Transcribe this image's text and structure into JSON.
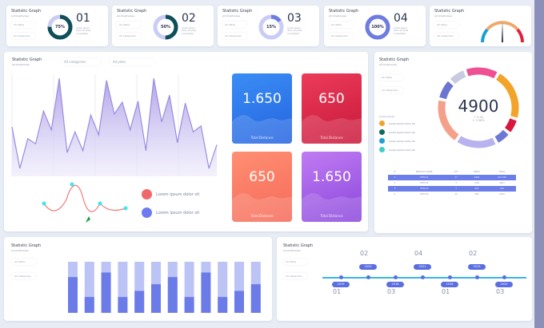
{
  "stat_cards": [
    {
      "title": "Statistic Graph",
      "subtitle": "All timeframes",
      "select1": "All dates",
      "select2": "All categories",
      "percent": "75%",
      "number": "01",
      "text": "Lorem ipsum dolor sit amet consectetur",
      "fill": 0.75,
      "color": "#0e4f5a"
    },
    {
      "title": "Statistic Graph",
      "subtitle": "All timeframes",
      "select1": "All dates",
      "select2": "All categories",
      "percent": "50%",
      "number": "02",
      "text": "Lorem ipsum dolor sit amet consectetur",
      "fill": 0.5,
      "color": "#0e4f5a"
    },
    {
      "title": "Statistic Graph",
      "subtitle": "All timeframes",
      "select1": "All dates",
      "select2": "All categories",
      "percent": "15%",
      "number": "03",
      "text": "Lorem ipsum dolor sit amet consectetur",
      "fill": 0.15,
      "color": "#6e7be0"
    },
    {
      "title": "Statistic Graph",
      "subtitle": "All timeframes",
      "select1": "All dates",
      "select2": "All categories",
      "percent": "100%",
      "number": "04",
      "text": "Lorem ipsum dolor sit amet consectetur",
      "fill": 1.0,
      "color": "#6e7be0"
    }
  ],
  "gauge_card": {
    "title": "Statistic Graph",
    "subtitle": "All timeframes",
    "select1": "All dates",
    "select2": "All categories"
  },
  "main_panel": {
    "title": "Statistic Graph",
    "subtitle": "All timeframes",
    "filter1": "All categories",
    "filter2": "All plots",
    "area_values": [
      50,
      8,
      38,
      33,
      66,
      47,
      99,
      24,
      45,
      26,
      62,
      42,
      97,
      63,
      75,
      47,
      76,
      26,
      99,
      55,
      82,
      34,
      74,
      45,
      51,
      8,
      32
    ],
    "legend": [
      {
        "label": "Lorem ipsum dolor sit",
        "color": "#f0686a"
      },
      {
        "label": "Lorem ipsum dolor sit",
        "color": "#6c7cf0"
      }
    ]
  },
  "kpis": [
    {
      "value": "1.650",
      "label": "Total Distance",
      "color1": "#3a8ef5",
      "color2": "#2563e0"
    },
    {
      "value": "650",
      "label": "Total Distance",
      "color1": "#ec3c5a",
      "color2": "#c8183a"
    },
    {
      "value": "650",
      "label": "Total Distance",
      "color1": "#ff8f72",
      "color2": "#f56a5a"
    },
    {
      "value": "1.650",
      "label": "Total Distance",
      "color1": "#c07cf2",
      "color2": "#8a46dc"
    }
  ],
  "donut_panel": {
    "title": "Statistic Graph",
    "subtitle": "All timeframes",
    "select1": "All dates",
    "select2": "All categories",
    "total": "4900",
    "line1": "+ 5.44",
    "line2": "+ 5.36%",
    "legend_title": "Lorem ipsum",
    "legend": [
      {
        "label": "Lorem ipsum dolor sit",
        "color": "#f2a32a"
      },
      {
        "label": "Lorem ipsum dolor sit",
        "color": "#0f6b5e"
      },
      {
        "label": "Lorem ipsum dolor sit",
        "color": "#1f9fd8"
      },
      {
        "label": "Lorem ipsum dolor sit",
        "color": "#3ccfc8"
      }
    ],
    "segments": [
      {
        "color": "#f2a32a",
        "value": 20
      },
      {
        "color": "#d8163e",
        "value": 6
      },
      {
        "color": "#6d78d6",
        "value": 6
      },
      {
        "color": "#b8b2ee",
        "value": 16
      },
      {
        "color": "#f5a08a",
        "value": 18
      },
      {
        "color": "#6b74cf",
        "value": 8
      },
      {
        "color": "#c8cbe0",
        "value": 7
      },
      {
        "color": "#ef4f93",
        "value": 13
      }
    ],
    "table": {
      "headers": [
        "#",
        "PRODUCT NAME",
        "QTY",
        "PRICE",
        "TOTAL"
      ],
      "rows": [
        [
          "1",
          "ITEM 01",
          "17",
          "$900",
          "$15.300"
        ],
        [
          "2",
          "ITEM 02",
          "3",
          "$ 89",
          "$267"
        ],
        [
          "3",
          "ITEM 03",
          "1",
          "$50",
          "$50"
        ],
        [
          "4",
          "ITEM 04",
          "12",
          "$60",
          "$720"
        ]
      ]
    }
  },
  "bar_panel": {
    "title": "Statistic Graph",
    "subtitle": "All timeframes",
    "select1": "All dates",
    "select2": "All categories",
    "values": [
      0.7,
      0.31,
      0.79,
      0.31,
      0.43,
      0.56,
      0.7,
      0.31,
      0.79,
      0.31,
      0.43,
      0.56
    ]
  },
  "timeline_panel": {
    "title": "Statistic Graph",
    "subtitle": "All timeframes",
    "select1": "All dates",
    "select2": "All categories",
    "events": [
      {
        "year": "2019",
        "num": "01",
        "pos": "below"
      },
      {
        "year": "2020",
        "num": "02",
        "pos": "above"
      },
      {
        "year": "2018",
        "num": "03",
        "pos": "below"
      },
      {
        "year": "2021",
        "num": "04",
        "pos": "above"
      },
      {
        "year": "2018",
        "num": "01",
        "pos": "below"
      },
      {
        "year": "2019",
        "num": "02",
        "pos": "above"
      },
      {
        "year": "2020",
        "num": "03",
        "pos": "below"
      }
    ]
  }
}
